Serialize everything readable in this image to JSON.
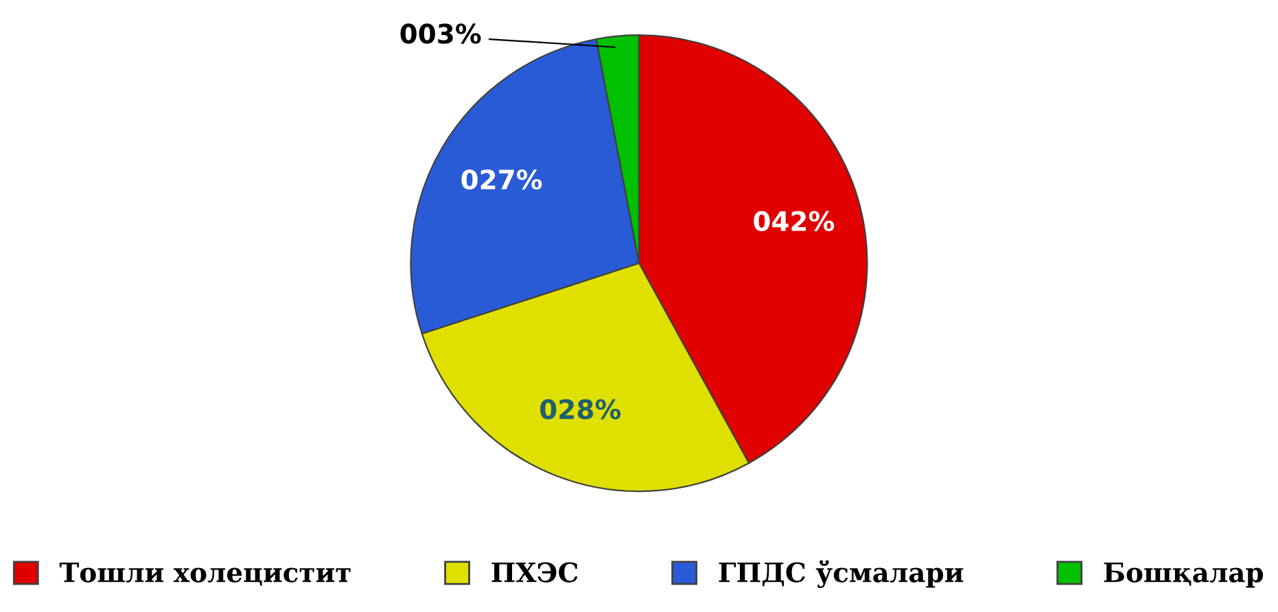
{
  "chart_data": {
    "type": "pie",
    "categories": [
      "Тошли холецистит",
      "ПХЭС",
      "ГПДС ўсмалари",
      "Бошқалар"
    ],
    "values": [
      42,
      28,
      27,
      3
    ],
    "colors": [
      "#e00000",
      "#e0e000",
      "#2a5bd7",
      "#00c000"
    ],
    "value_labels": [
      "042%",
      "028%",
      "027%",
      "003%"
    ],
    "legend": "bottom"
  }
}
